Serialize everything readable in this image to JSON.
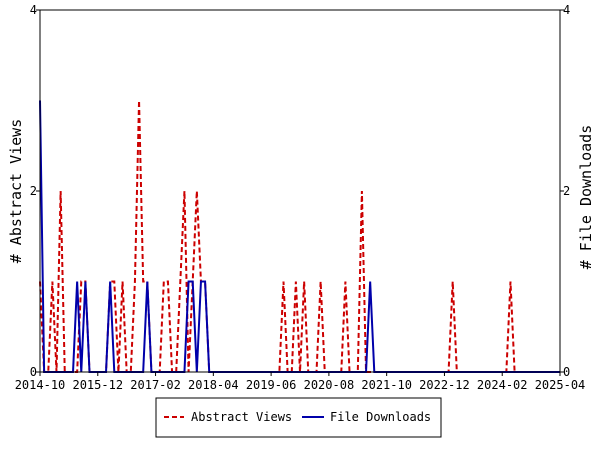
{
  "chart_data": {
    "type": "line",
    "title": "",
    "ylabel_left": "# Abstract Views",
    "ylabel_right": "# File Downloads",
    "xlabels": [
      "2014-10",
      "2015-12",
      "2017-02",
      "2018-04",
      "2019-06",
      "2020-08",
      "2021-10",
      "2022-12",
      "2024-02",
      "2025-04"
    ],
    "x_start": "2014-10",
    "x_end": "2025-04",
    "ylim_left": [
      0,
      4
    ],
    "ylim_right": [
      0,
      4
    ],
    "yticks_left": [
      "0",
      "2",
      "4"
    ],
    "yticks_right": [
      "0",
      "2",
      "4"
    ],
    "legend_position": "bottom-center",
    "grid": false,
    "series": [
      {
        "name": "Abstract Views",
        "color": "#cc0000",
        "style": "dashed",
        "points": [
          [
            "2014-10",
            1
          ],
          [
            "2014-11",
            0
          ],
          [
            "2014-12",
            0
          ],
          [
            "2015-01",
            1
          ],
          [
            "2015-02",
            0
          ],
          [
            "2015-03",
            2
          ],
          [
            "2015-04",
            0
          ],
          [
            "2015-05",
            0
          ],
          [
            "2015-06",
            0
          ],
          [
            "2015-07",
            0
          ],
          [
            "2015-08",
            1
          ],
          [
            "2015-09",
            1
          ],
          [
            "2015-10",
            0
          ],
          [
            "2015-11",
            0
          ],
          [
            "2016-01",
            0
          ],
          [
            "2016-02",
            0
          ],
          [
            "2016-03",
            1
          ],
          [
            "2016-04",
            1
          ],
          [
            "2016-05",
            0
          ],
          [
            "2016-06",
            1
          ],
          [
            "2016-07",
            0
          ],
          [
            "2016-08",
            0
          ],
          [
            "2016-09",
            1
          ],
          [
            "2016-10",
            3
          ],
          [
            "2016-11",
            1
          ],
          [
            "2016-12",
            1
          ],
          [
            "2017-01",
            0
          ],
          [
            "2017-02",
            0
          ],
          [
            "2017-03",
            0
          ],
          [
            "2017-04",
            1
          ],
          [
            "2017-05",
            1
          ],
          [
            "2017-06",
            0
          ],
          [
            "2017-07",
            0
          ],
          [
            "2017-08",
            1
          ],
          [
            "2017-09",
            2
          ],
          [
            "2017-10",
            0
          ],
          [
            "2017-11",
            1
          ],
          [
            "2017-12",
            2
          ],
          [
            "2018-01",
            1
          ],
          [
            "2018-02",
            1
          ],
          [
            "2018-03",
            0
          ],
          [
            "2018-04",
            0
          ],
          [
            "2019-08",
            0
          ],
          [
            "2019-09",
            1
          ],
          [
            "2019-10",
            0
          ],
          [
            "2019-11",
            0
          ],
          [
            "2019-12",
            1
          ],
          [
            "2020-01",
            0
          ],
          [
            "2020-02",
            1
          ],
          [
            "2020-03",
            0
          ],
          [
            "2020-04",
            0
          ],
          [
            "2020-05",
            0
          ],
          [
            "2020-06",
            1
          ],
          [
            "2020-07",
            0
          ],
          [
            "2020-08",
            0
          ],
          [
            "2020-09",
            0
          ],
          [
            "2020-10",
            0
          ],
          [
            "2020-11",
            0
          ],
          [
            "2020-12",
            1
          ],
          [
            "2021-01",
            0
          ],
          [
            "2021-02",
            0
          ],
          [
            "2021-03",
            0
          ],
          [
            "2021-04",
            2
          ],
          [
            "2021-05",
            0
          ],
          [
            "2023-01",
            0
          ],
          [
            "2023-02",
            1
          ],
          [
            "2023-03",
            0
          ],
          [
            "2024-03",
            0
          ],
          [
            "2024-04",
            1
          ],
          [
            "2024-05",
            0
          ],
          [
            "2025-04",
            0
          ]
        ]
      },
      {
        "name": "File Downloads",
        "color": "#0000aa",
        "style": "solid",
        "points": [
          [
            "2014-10",
            3
          ],
          [
            "2014-11",
            0
          ],
          [
            "2014-12",
            0
          ],
          [
            "2015-01",
            0
          ],
          [
            "2015-02",
            0
          ],
          [
            "2015-03",
            0
          ],
          [
            "2015-04",
            0
          ],
          [
            "2015-05",
            0
          ],
          [
            "2015-06",
            0
          ],
          [
            "2015-07",
            1
          ],
          [
            "2015-08",
            0
          ],
          [
            "2015-09",
            1
          ],
          [
            "2015-10",
            0
          ],
          [
            "2015-11",
            0
          ],
          [
            "2016-02",
            0
          ],
          [
            "2016-03",
            1
          ],
          [
            "2016-04",
            0
          ],
          [
            "2016-11",
            0
          ],
          [
            "2016-12",
            1
          ],
          [
            "2017-01",
            0
          ],
          [
            "2017-09",
            0
          ],
          [
            "2017-10",
            1
          ],
          [
            "2017-11",
            1
          ],
          [
            "2017-12",
            0
          ],
          [
            "2018-01",
            1
          ],
          [
            "2018-02",
            1
          ],
          [
            "2018-03",
            0
          ],
          [
            "2021-05",
            0
          ],
          [
            "2021-06",
            1
          ],
          [
            "2021-07",
            0
          ],
          [
            "2025-04",
            0
          ]
        ]
      }
    ]
  }
}
